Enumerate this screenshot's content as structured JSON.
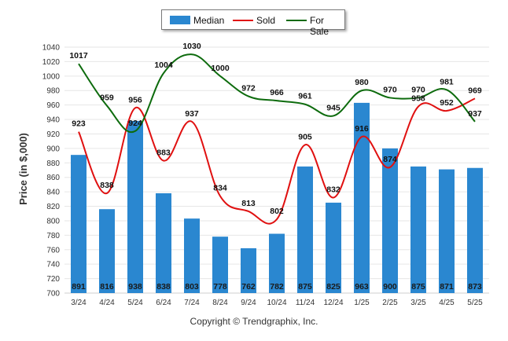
{
  "chart_data": {
    "type": "bar",
    "ylabel": "Price (in $,000)",
    "xlabel": "",
    "title": "",
    "ylim": [
      700,
      1040
    ],
    "yticks": [
      700,
      720,
      740,
      760,
      780,
      800,
      820,
      840,
      860,
      880,
      900,
      920,
      940,
      960,
      980,
      1000,
      1020,
      1040
    ],
    "categories": [
      "3/24",
      "4/24",
      "5/24",
      "6/24",
      "7/24",
      "8/24",
      "9/24",
      "10/24",
      "11/24",
      "12/24",
      "1/25",
      "2/25",
      "3/25",
      "4/25",
      "5/25"
    ],
    "grid": true,
    "legend_position": "top-center",
    "series": [
      {
        "name": "Median",
        "type": "bar",
        "color": "#2a87d0",
        "values": [
          891,
          816,
          938,
          838,
          803,
          778,
          762,
          782,
          875,
          825,
          963,
          900,
          875,
          871,
          873
        ]
      },
      {
        "name": "Sold",
        "type": "line",
        "color": "#e01010",
        "values": [
          923,
          838,
          956,
          883,
          937,
          834,
          813,
          802,
          905,
          832,
          916,
          874,
          958,
          952,
          969
        ]
      },
      {
        "name": "For Sale",
        "type": "line",
        "color": "#0d6b0d",
        "values": [
          1017,
          959,
          924,
          1004,
          1030,
          1000,
          972,
          966,
          961,
          945,
          980,
          970,
          970,
          981,
          937
        ]
      }
    ]
  },
  "footer": {
    "copyright": "Copyright © Trendgraphix, Inc."
  }
}
